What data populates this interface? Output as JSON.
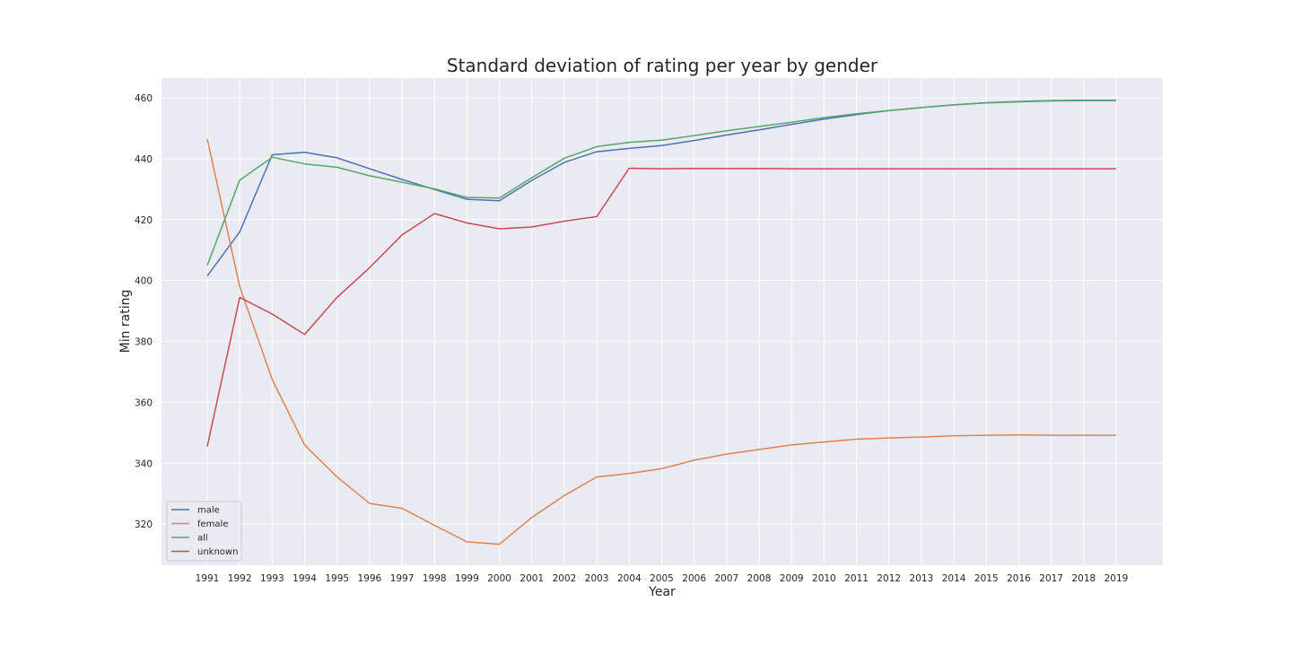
{
  "chart_data": {
    "type": "line",
    "title": "Standard deviation of rating per year by gender",
    "xlabel": "Year",
    "ylabel": "Min rating",
    "x": [
      "1991",
      "1992",
      "1993",
      "1994",
      "1995",
      "1996",
      "1997",
      "1998",
      "1999",
      "2000",
      "2001",
      "2002",
      "2003",
      "2004",
      "2005",
      "2006",
      "2007",
      "2008",
      "2009",
      "2010",
      "2011",
      "2012",
      "2013",
      "2014",
      "2015",
      "2016",
      "2017",
      "2018",
      "2019"
    ],
    "yticks": [
      320,
      340,
      360,
      380,
      400,
      420,
      440,
      460
    ],
    "ylim": [
      306.5,
      466.5
    ],
    "grid": true,
    "legend_position": "lower-left",
    "series": [
      {
        "name": "male",
        "color": "#4c72b0",
        "values": [
          401.5,
          416,
          441.3,
          442.1,
          440.3,
          436.7,
          433.2,
          429.9,
          426.7,
          426.2,
          432.9,
          438.8,
          442.3,
          443.4,
          444.3,
          446.0,
          447.8,
          449.5,
          451.3,
          453.0,
          454.5,
          455.8,
          456.8,
          457.7,
          458.4,
          458.8,
          459.1,
          459.2,
          459.2
        ]
      },
      {
        "name": "female",
        "color": "#dd8452",
        "values": [
          446.5,
          398,
          367.5,
          346,
          335.5,
          326.8,
          325.2,
          319.6,
          314.2,
          313.4,
          322.2,
          329.4,
          335.5,
          336.6,
          338.2,
          341.0,
          343.0,
          344.5,
          346.0,
          347.0,
          347.9,
          348.3,
          348.6,
          349.0,
          349.2,
          349.3,
          349.2,
          349.2,
          349.2
        ]
      },
      {
        "name": "all",
        "color": "#55a868",
        "values": [
          405,
          433,
          440.5,
          438.3,
          437.2,
          434.4,
          432.3,
          430.1,
          427.3,
          427.1,
          433.8,
          440.2,
          444.0,
          445.4,
          446.1,
          447.6,
          449.2,
          450.6,
          452.0,
          453.5,
          454.8,
          455.8,
          456.8,
          457.7,
          458.3,
          458.7,
          459.0,
          459.1,
          459.1
        ]
      },
      {
        "name": "unknown",
        "color": "#c44e52",
        "values": [
          345.5,
          394.5,
          389,
          382.3,
          394.5,
          404.2,
          415,
          422,
          418.9,
          417,
          417.6,
          419.5,
          421,
          436.9,
          436.7,
          436.8,
          436.8,
          436.8,
          436.7,
          436.7,
          436.7,
          436.7,
          436.7,
          436.7,
          436.7,
          436.7,
          436.7,
          436.7,
          436.7
        ]
      }
    ]
  }
}
